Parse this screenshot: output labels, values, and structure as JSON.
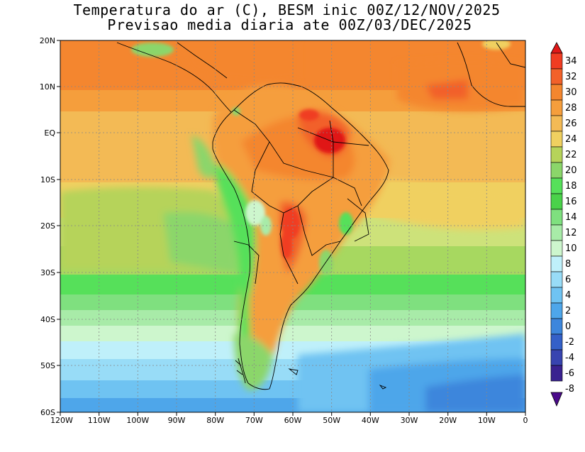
{
  "title": {
    "line1": "Temperatura do ar (C), BESM inic 00Z/12/NOV/2025",
    "line2": "Previsao media diaria ate 00Z/03/DEC/2025"
  },
  "axes": {
    "lat_labels": [
      "20N",
      "10N",
      "EQ",
      "10S",
      "20S",
      "30S",
      "40S",
      "50S",
      "60S"
    ],
    "lon_labels": [
      "120W",
      "110W",
      "100W",
      "90W",
      "80W",
      "70W",
      "60W",
      "50W",
      "40W",
      "30W",
      "20W",
      "10W",
      "0"
    ]
  },
  "colorbar": {
    "labels": [
      "34",
      "32",
      "30",
      "28",
      "26",
      "24",
      "22",
      "20",
      "18",
      "16",
      "14",
      "12",
      "10",
      "8",
      "6",
      "4",
      "2",
      "0",
      "-2",
      "-4",
      "-6",
      "-8"
    ],
    "colors": [
      "#e01818",
      "#f03c22",
      "#f2612a",
      "#f4862f",
      "#f59e3c",
      "#f3ba55",
      "#f0d060",
      "#b6d35a",
      "#8bd66a",
      "#56e05a",
      "#4ad24a",
      "#7fe07f",
      "#a8eba8",
      "#cdf6cd",
      "#bff0fa",
      "#98dcf7",
      "#6fc3f2",
      "#4ea6ea",
      "#3d86dc",
      "#3460c8",
      "#3844b0",
      "#3a2290",
      "#4a0a8a"
    ]
  }
}
